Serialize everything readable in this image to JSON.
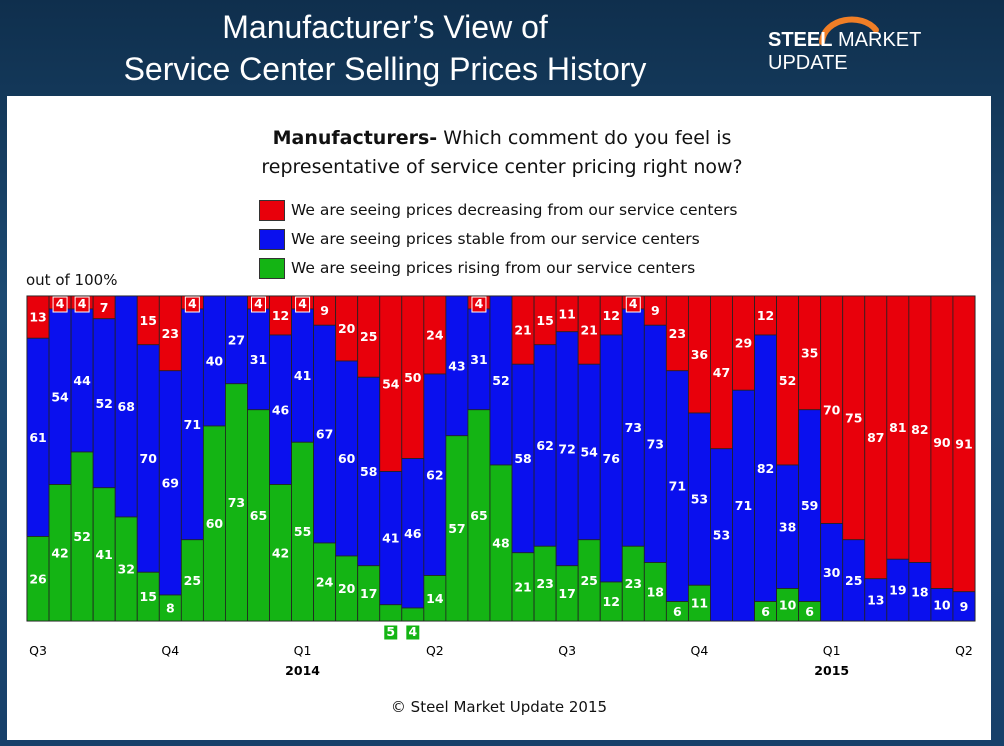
{
  "header": {
    "title_line1": "Manufacturer’s View of",
    "title_line2": "Service Center Selling Prices History",
    "brand_bold": "STEEL",
    "brand_rest": " MARKET UPDATE"
  },
  "colors": {
    "decreasing": "#e8000b",
    "stable": "#0a10ee",
    "rising": "#14b414"
  },
  "question": {
    "bold": "Manufacturers-",
    "line1_rest": " Which comment do you feel is",
    "line2": "representative of service center pricing right now?"
  },
  "footer": {
    "copyright": "© Steel Market Update 2015"
  },
  "chart_data": {
    "type": "bar",
    "stacked": true,
    "ylabel": "out of 100%",
    "ylim": [
      0,
      100
    ],
    "legend": [
      "We are seeing prices decreasing from our service centers",
      "We are seeing prices stable from our service centers",
      "We are seeing prices rising from our service centers"
    ],
    "series": [
      {
        "name": "decreasing",
        "values": [
          13,
          4,
          4,
          7,
          0,
          15,
          23,
          4,
          0,
          0,
          4,
          12,
          4,
          9,
          20,
          25,
          54,
          50,
          24,
          0,
          4,
          0,
          21,
          15,
          11,
          21,
          12,
          4,
          9,
          23,
          36,
          47,
          29,
          12,
          52,
          35,
          70,
          75,
          87,
          81,
          82,
          90,
          91
        ]
      },
      {
        "name": "stable",
        "values": [
          61,
          54,
          44,
          52,
          68,
          70,
          69,
          71,
          40,
          27,
          31,
          46,
          41,
          67,
          60,
          58,
          41,
          46,
          62,
          43,
          31,
          52,
          58,
          62,
          72,
          54,
          76,
          73,
          73,
          71,
          53,
          53,
          71,
          82,
          38,
          59,
          30,
          25,
          13,
          19,
          18,
          10,
          9
        ]
      },
      {
        "name": "rising",
        "values": [
          26,
          42,
          52,
          41,
          32,
          15,
          8,
          25,
          60,
          73,
          65,
          42,
          55,
          24,
          20,
          17,
          5,
          4,
          14,
          57,
          65,
          48,
          21,
          23,
          17,
          25,
          12,
          23,
          18,
          6,
          11,
          0,
          0,
          6,
          10,
          6,
          0,
          0,
          0,
          0,
          0,
          0,
          0
        ]
      }
    ],
    "x_ticks": [
      {
        "label": "Q3",
        "index": 0
      },
      {
        "label": "Q4",
        "index": 6
      },
      {
        "label": "Q1",
        "index": 12
      },
      {
        "label": "Q2",
        "index": 18
      },
      {
        "label": "Q3",
        "index": 24
      },
      {
        "label": "Q4",
        "index": 30
      },
      {
        "label": "Q1",
        "index": 36
      },
      {
        "label": "Q2",
        "index": 42
      }
    ],
    "year_labels": [
      {
        "label": "2014",
        "index": 12
      },
      {
        "label": "2015",
        "index": 36
      }
    ]
  }
}
